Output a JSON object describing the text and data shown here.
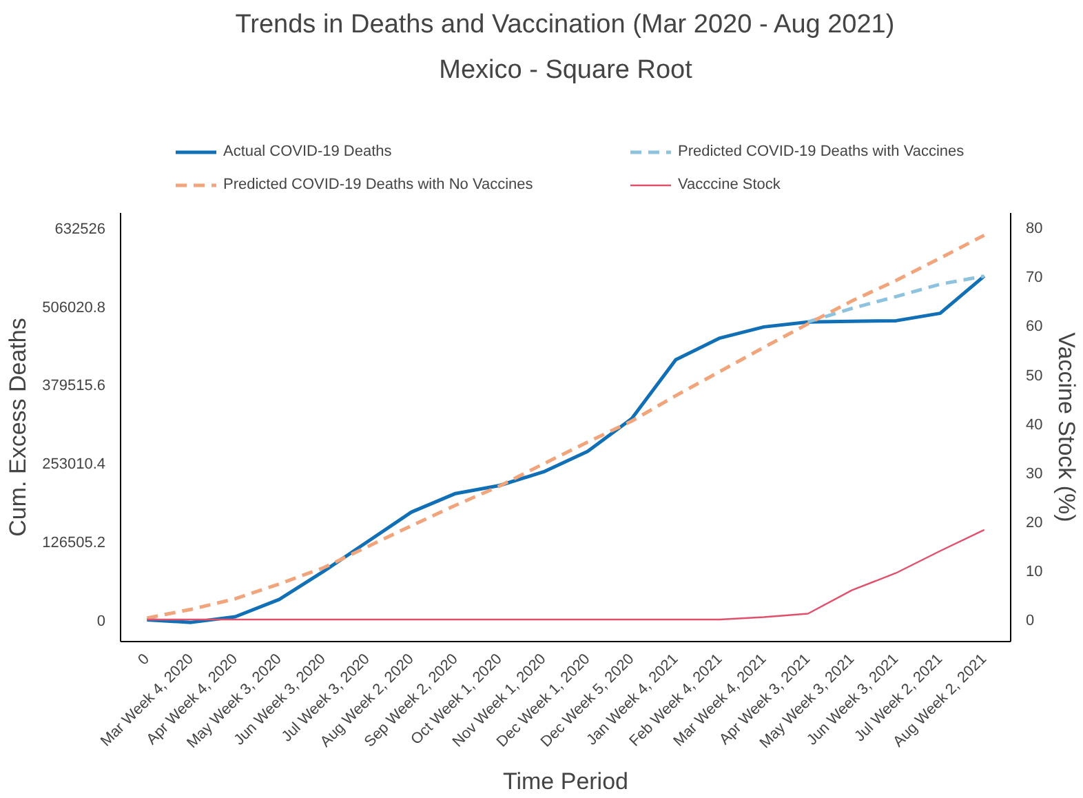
{
  "chart_data": {
    "type": "line",
    "title": "Trends in Deaths and Vaccination (Mar 2020 - Aug 2021)",
    "subtitle": "Mexico - Square Root",
    "xlabel": "Time Period",
    "ylabel": "Cum. Excess Deaths",
    "y2label": "Vaccine Stock (%)",
    "categories": [
      "0",
      "Mar Week 4, 2020",
      "Apr Week 4, 2020",
      "May Week 3, 2020",
      "Jun Week 3, 2020",
      "Jul Week 3, 2020",
      "Aug Week 2, 2020",
      "Sep Week 2, 2020",
      "Oct Week 1, 2020",
      "Nov Week 1, 2020",
      "Dec Week 1, 2020",
      "Dec Week 5, 2020",
      "Jan Week 4, 2021",
      "Feb Week 4, 2021",
      "Mar Week 4, 2021",
      "Apr Week 3, 2021",
      "May Week 3, 2021",
      "Jun Week 3, 2021",
      "Jul Week 2, 2021",
      "Aug Week 2, 2021"
    ],
    "ylim": [
      -35000,
      657000
    ],
    "yticks": [
      0,
      126505.2,
      253010.4,
      379515.6,
      506020.8,
      632526
    ],
    "y2lim": [
      -4.5,
      83
    ],
    "y2ticks": [
      0,
      10,
      20,
      30,
      40,
      50,
      60,
      70,
      80
    ],
    "grid": false,
    "legend": "top",
    "marker": "none",
    "series": [
      {
        "name": "Actual COVID-19 Deaths",
        "color": "#1170b5",
        "line_style": "solid",
        "values": [
          0,
          -4000,
          5000,
          33000,
          78000,
          126000,
          174000,
          204000,
          217000,
          239000,
          272000,
          325000,
          420000,
          455000,
          473000,
          481000,
          482000,
          483000,
          495000,
          555000
        ]
      },
      {
        "name": "Predicted COVID-19 Deaths with Vaccines",
        "color": "#8ec3de",
        "line_style": "dashed",
        "values": [
          null,
          null,
          null,
          null,
          null,
          null,
          null,
          null,
          null,
          null,
          null,
          null,
          null,
          null,
          null,
          481000,
          503000,
          522000,
          542000,
          555000
        ]
      },
      {
        "name": "Predicted COVID-19 Deaths with No Vaccines",
        "color": "#f0a57c",
        "line_style": "dashed",
        "values": [
          3000,
          17000,
          34000,
          58000,
          84000,
          118000,
          152000,
          185000,
          216000,
          252000,
          287000,
          321000,
          362000,
          401000,
          440000,
          478000,
          515000,
          548000,
          584000,
          621000
        ]
      },
      {
        "name": "Vacccine Stock",
        "color": "#e0506a",
        "line_style": "solid",
        "axis": "y2",
        "values": [
          0,
          0,
          0,
          0,
          0,
          0,
          0,
          0,
          0,
          0,
          0,
          0,
          0,
          0,
          0.5,
          1.2,
          6.0,
          9.5,
          14.0,
          18.3
        ]
      }
    ]
  }
}
